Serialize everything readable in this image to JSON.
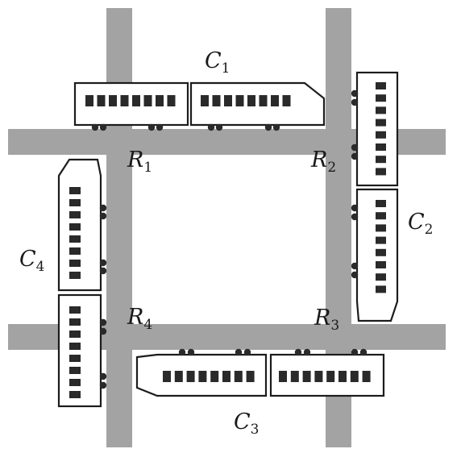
{
  "colors": {
    "track": "#a3a3a3",
    "car_outline": "#1c1c1c",
    "window": "#2a2a2a",
    "wheel": "#2a2a2a",
    "background": "#ffffff"
  },
  "trains": [
    {
      "id": "C1",
      "letter": "C",
      "sub": "1"
    },
    {
      "id": "C2",
      "letter": "C",
      "sub": "2"
    },
    {
      "id": "C3",
      "letter": "C",
      "sub": "3"
    },
    {
      "id": "C4",
      "letter": "C",
      "sub": "4"
    }
  ],
  "crossings": [
    {
      "id": "R1",
      "letter": "R",
      "sub": "1"
    },
    {
      "id": "R2",
      "letter": "R",
      "sub": "2"
    },
    {
      "id": "R3",
      "letter": "R",
      "sub": "3"
    },
    {
      "id": "R4",
      "letter": "R",
      "sub": "4"
    }
  ]
}
